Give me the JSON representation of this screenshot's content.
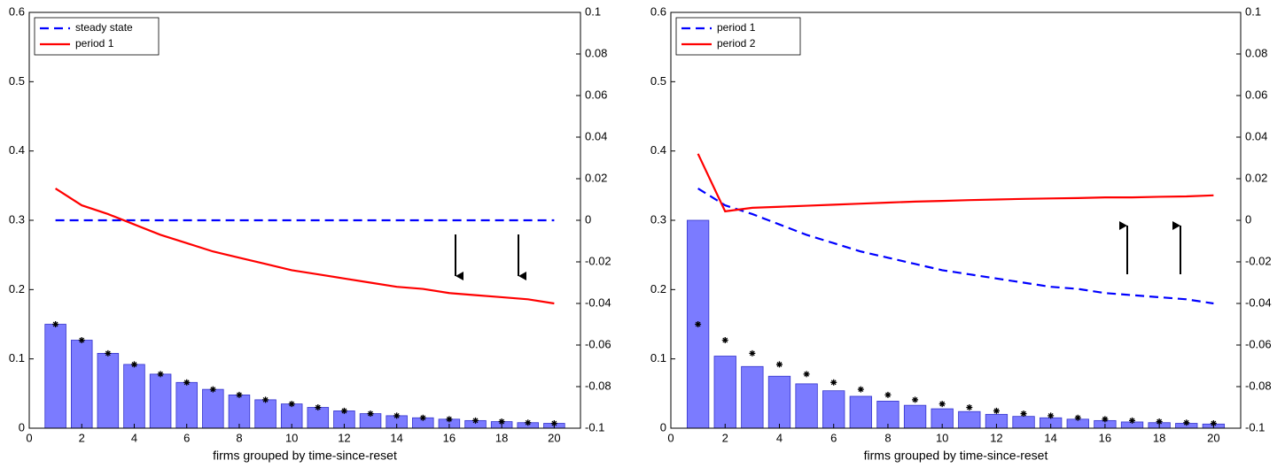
{
  "chart_data": [
    {
      "type": "bar",
      "xlabel": "firms grouped by time-since-reset",
      "x": [
        1,
        2,
        3,
        4,
        5,
        6,
        7,
        8,
        9,
        10,
        11,
        12,
        13,
        14,
        15,
        16,
        17,
        18,
        19,
        20
      ],
      "xlim": [
        0,
        21
      ],
      "xticks": [
        0,
        2,
        4,
        6,
        8,
        10,
        12,
        14,
        16,
        18,
        20
      ],
      "ylim": [
        0,
        0.6
      ],
      "yticks": [
        0,
        0.1,
        0.2,
        0.3,
        0.4,
        0.5,
        0.6
      ],
      "y2lim": [
        -0.1,
        0.1
      ],
      "y2ticks": [
        -0.1,
        -0.08,
        -0.06,
        -0.04,
        -0.02,
        0,
        0.02,
        0.04,
        0.06,
        0.08,
        0.1
      ],
      "bars": {
        "color": "#7b7bff",
        "values": [
          0.15,
          0.127,
          0.108,
          0.092,
          0.078,
          0.066,
          0.056,
          0.048,
          0.041,
          0.035,
          0.03,
          0.025,
          0.021,
          0.018,
          0.015,
          0.013,
          0.011,
          0.0095,
          0.008,
          0.007
        ]
      },
      "markers": {
        "color": "#000000",
        "values": [
          0.15,
          0.127,
          0.108,
          0.092,
          0.078,
          0.066,
          0.056,
          0.048,
          0.041,
          0.035,
          0.03,
          0.025,
          0.021,
          0.018,
          0.015,
          0.013,
          0.011,
          0.0095,
          0.008,
          0.007
        ]
      },
      "series": [
        {
          "name": "steady state",
          "color": "#0000ff",
          "dash": true,
          "axis": "y2",
          "values": [
            0,
            0,
            0,
            0,
            0,
            0,
            0,
            0,
            0,
            0,
            0,
            0,
            0,
            0,
            0,
            0,
            0,
            0,
            0,
            0
          ]
        },
        {
          "name": "period 1",
          "color": "#ff0000",
          "dash": false,
          "axis": "y2",
          "values": [
            0.0153,
            0.0072,
            0.003,
            -0.002,
            -0.007,
            -0.011,
            -0.015,
            -0.018,
            -0.021,
            -0.024,
            -0.026,
            -0.028,
            -0.03,
            -0.032,
            -0.033,
            -0.035,
            -0.036,
            -0.037,
            -0.038,
            -0.04
          ]
        }
      ]
    },
    {
      "type": "bar",
      "xlabel": "firms grouped by time-since-reset",
      "x": [
        1,
        2,
        3,
        4,
        5,
        6,
        7,
        8,
        9,
        10,
        11,
        12,
        13,
        14,
        15,
        16,
        17,
        18,
        19,
        20
      ],
      "xlim": [
        0,
        21
      ],
      "xticks": [
        0,
        2,
        4,
        6,
        8,
        10,
        12,
        14,
        16,
        18,
        20
      ],
      "ylim": [
        0,
        0.6
      ],
      "yticks": [
        0,
        0.1,
        0.2,
        0.3,
        0.4,
        0.5,
        0.6
      ],
      "y2lim": [
        -0.1,
        0.1
      ],
      "y2ticks": [
        -0.1,
        -0.08,
        -0.06,
        -0.04,
        -0.02,
        0,
        0.02,
        0.04,
        0.06,
        0.08,
        0.1
      ],
      "bars": {
        "color": "#7b7bff",
        "values": [
          0.3,
          0.104,
          0.089,
          0.075,
          0.064,
          0.054,
          0.046,
          0.039,
          0.033,
          0.028,
          0.024,
          0.02,
          0.017,
          0.015,
          0.013,
          0.011,
          0.009,
          0.008,
          0.007,
          0.006
        ]
      },
      "markers": {
        "color": "#000000",
        "values": [
          0.15,
          0.127,
          0.108,
          0.092,
          0.078,
          0.066,
          0.056,
          0.048,
          0.041,
          0.035,
          0.03,
          0.025,
          0.021,
          0.018,
          0.015,
          0.013,
          0.011,
          0.0095,
          0.008,
          0.007
        ]
      },
      "series": [
        {
          "name": "period 1",
          "color": "#0000ff",
          "dash": true,
          "axis": "y2",
          "values": [
            0.0153,
            0.0072,
            0.003,
            -0.002,
            -0.007,
            -0.011,
            -0.015,
            -0.018,
            -0.021,
            -0.024,
            -0.026,
            -0.028,
            -0.03,
            -0.032,
            -0.033,
            -0.035,
            -0.036,
            -0.037,
            -0.038,
            -0.04
          ]
        },
        {
          "name": "period 2",
          "color": "#ff0000",
          "dash": false,
          "axis": "y2",
          "values": [
            0.032,
            0.0043,
            0.006,
            0.0065,
            0.007,
            0.0075,
            0.008,
            0.0085,
            0.009,
            0.0093,
            0.0097,
            0.01,
            0.0103,
            0.0105,
            0.0107,
            0.011,
            0.011,
            0.0113,
            0.0115,
            0.012
          ]
        }
      ]
    }
  ]
}
